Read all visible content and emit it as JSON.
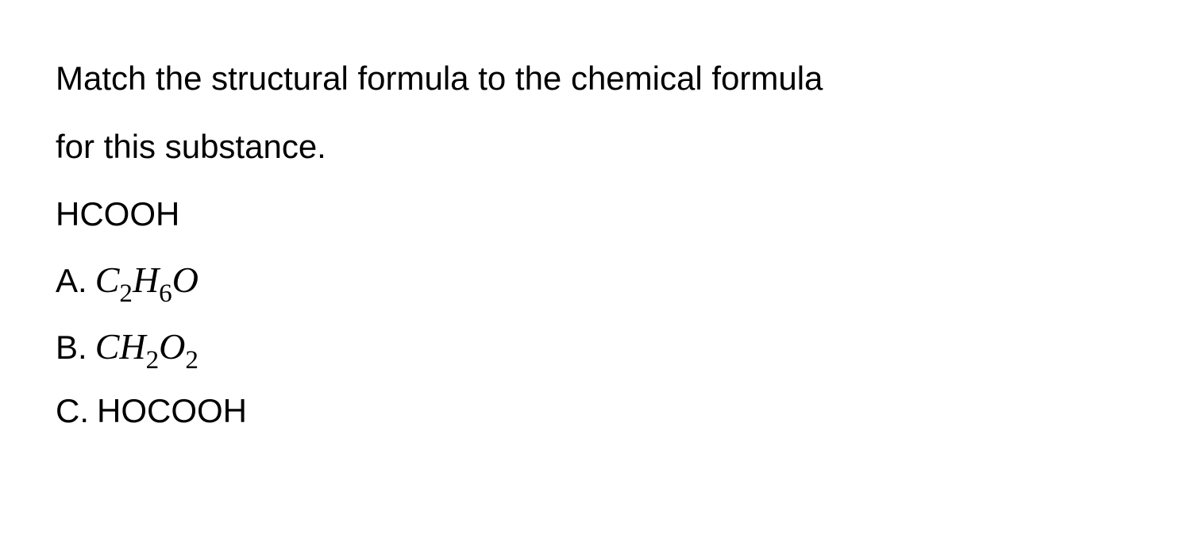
{
  "question": {
    "prompt_line1": "Match the structural formula to the chemical formula",
    "prompt_line2": "for this substance.",
    "given_formula": "HCOOH"
  },
  "options": {
    "a": {
      "label": "A.",
      "elem1": "C",
      "sub1": "2",
      "elem2": "H",
      "sub2": "6",
      "elem3": "O"
    },
    "b": {
      "label": "B.",
      "elem1": "C",
      "elem2": "H",
      "sub2": "2",
      "elem3": "O",
      "sub3": "2"
    },
    "c": {
      "label": "C.",
      "text": "HOCOOH"
    }
  },
  "colors": {
    "background": "#ffffff",
    "text": "#000000"
  },
  "typography": {
    "body_font": "Arial, Helvetica, sans-serif",
    "math_font": "Times New Roman, serif",
    "body_fontsize": 42,
    "math_fontsize": 46
  }
}
